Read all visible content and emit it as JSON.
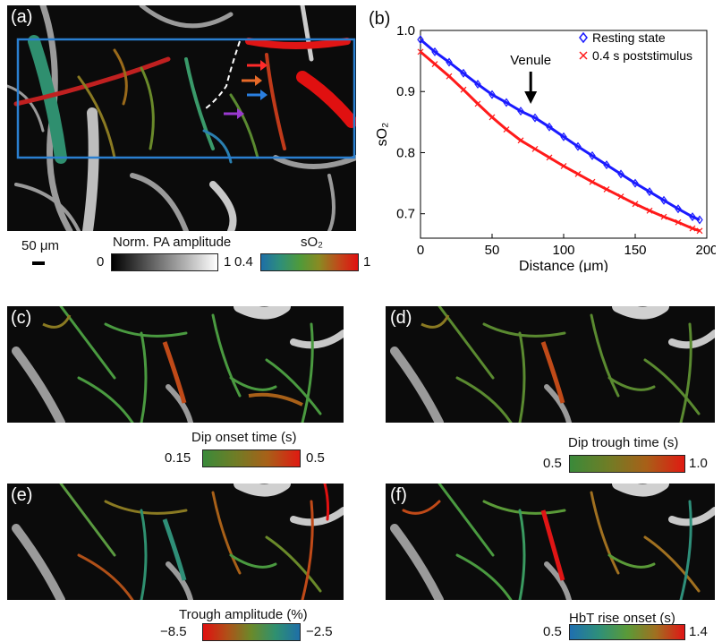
{
  "panels": {
    "a": {
      "label": "(a)"
    },
    "b": {
      "label": "(b)"
    },
    "c": {
      "label": "(c)"
    },
    "d": {
      "label": "(d)"
    },
    "e": {
      "label": "(e)"
    },
    "f": {
      "label": "(f)"
    }
  },
  "scalebar": {
    "label": "50 μm"
  },
  "colorbars": {
    "pa": {
      "title": "Norm. PA amplitude",
      "min": "0",
      "max": "1"
    },
    "so2": {
      "title": "sO₂",
      "min": "0.4",
      "max": "1"
    },
    "c": {
      "title": "Dip onset time (s)",
      "min": "0.15",
      "max": "0.5"
    },
    "d": {
      "title": "Dip trough time (s)",
      "min": "0.5",
      "max": "1.0"
    },
    "e": {
      "title": "Trough amplitude (%)",
      "min": "−8.5",
      "max": "−2.5"
    },
    "f": {
      "title": "HbT rise onset (s)",
      "min": "0.5",
      "max": "1.4"
    }
  },
  "colors": {
    "roi_box": "#2a7fd0",
    "arrow_red": "#ff2a2a",
    "arrow_orange": "#e86a28",
    "arrow_blue": "#2a7fe0",
    "arrow_purple": "#9a3ad0",
    "resting": "#1a1aff",
    "poststim": "#ff1a1a"
  },
  "chart_data": {
    "type": "scatter",
    "xlabel": "Distance (μm)",
    "ylabel": "sO₂",
    "xlim": [
      0,
      200
    ],
    "ylim": [
      0.66,
      1.0
    ],
    "xticks": [
      "0",
      "50",
      "100",
      "150",
      "200"
    ],
    "yticks": [
      "0.7",
      "0.8",
      "0.9",
      "1.0"
    ],
    "legend_position": "top-right",
    "annotation": "Venule",
    "annotation_x": 77,
    "series": [
      {
        "name": "Resting state",
        "marker": "diamond",
        "color": "#1a1aff",
        "x": [
          0,
          10,
          20,
          30,
          40,
          50,
          60,
          70,
          80,
          90,
          100,
          110,
          120,
          130,
          140,
          150,
          160,
          170,
          180,
          190,
          195
        ],
        "y": [
          0.985,
          0.965,
          0.948,
          0.93,
          0.912,
          0.895,
          0.882,
          0.868,
          0.857,
          0.842,
          0.826,
          0.81,
          0.795,
          0.78,
          0.765,
          0.75,
          0.736,
          0.722,
          0.708,
          0.695,
          0.69
        ]
      },
      {
        "name": "0.4 s poststimulus",
        "marker": "cross",
        "color": "#ff1a1a",
        "x": [
          0,
          10,
          20,
          30,
          40,
          50,
          60,
          70,
          80,
          90,
          100,
          110,
          120,
          130,
          140,
          150,
          160,
          170,
          180,
          190,
          195
        ],
        "y": [
          0.965,
          0.945,
          0.925,
          0.903,
          0.88,
          0.858,
          0.838,
          0.82,
          0.806,
          0.792,
          0.778,
          0.765,
          0.752,
          0.74,
          0.728,
          0.716,
          0.705,
          0.695,
          0.686,
          0.676,
          0.672
        ]
      }
    ]
  }
}
